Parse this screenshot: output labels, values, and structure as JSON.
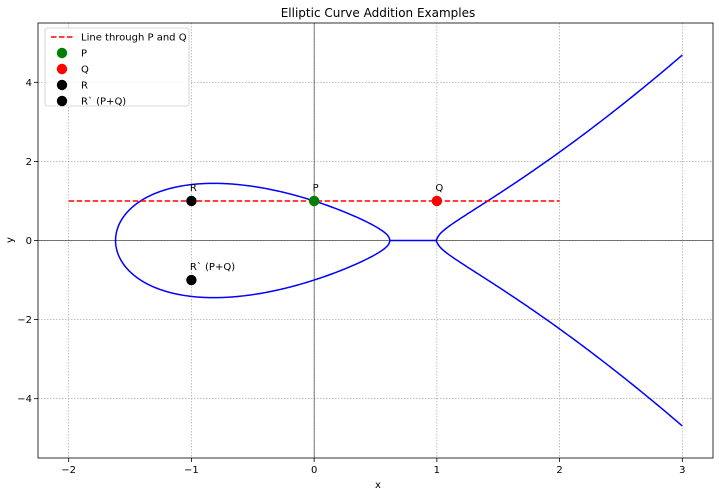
{
  "chart_data": {
    "type": "line",
    "title": "Elliptic Curve Addition Examples",
    "xlabel": "x",
    "ylabel": "y",
    "xlim": [
      -2.25,
      3.25
    ],
    "ylim": [
      -5.5,
      5.5
    ],
    "xticks": [
      -2,
      -1,
      0,
      1,
      2,
      3
    ],
    "yticks": [
      -4,
      -2,
      0,
      2,
      4
    ],
    "grid": true,
    "grid_style": "dotted",
    "legend_position": "top-left",
    "curve": {
      "equation": "y^2 = x^3 - 2x + 1",
      "a": -2,
      "b": 1,
      "x_range": [
        -1.618,
        3
      ],
      "color": "#0000ff"
    },
    "line": {
      "name": "Line through P and Q",
      "x": [
        -2,
        2
      ],
      "y": [
        1,
        1
      ],
      "color": "#ff0000",
      "style": "dashed"
    },
    "points": [
      {
        "name": "P",
        "x": 0,
        "y": 1,
        "color": "#008000",
        "annotation": "P"
      },
      {
        "name": "Q",
        "x": 1,
        "y": 1,
        "color": "#ff0000",
        "annotation": "Q"
      },
      {
        "name": "R",
        "x": -1,
        "y": 1,
        "color": "#000000",
        "annotation": "R"
      },
      {
        "name": "R` (P+Q)",
        "x": -1,
        "y": -1,
        "color": "#000000",
        "annotation": "R` (P+Q)"
      }
    ],
    "legend": [
      {
        "label": "Line through P and Q",
        "kind": "line",
        "color": "#ff0000"
      },
      {
        "label": "P",
        "kind": "marker",
        "color": "#008000"
      },
      {
        "label": "Q",
        "kind": "marker",
        "color": "#ff0000"
      },
      {
        "label": "R",
        "kind": "marker",
        "color": "#000000"
      },
      {
        "label": "R` (P+Q)",
        "kind": "marker",
        "color": "#000000"
      }
    ]
  }
}
